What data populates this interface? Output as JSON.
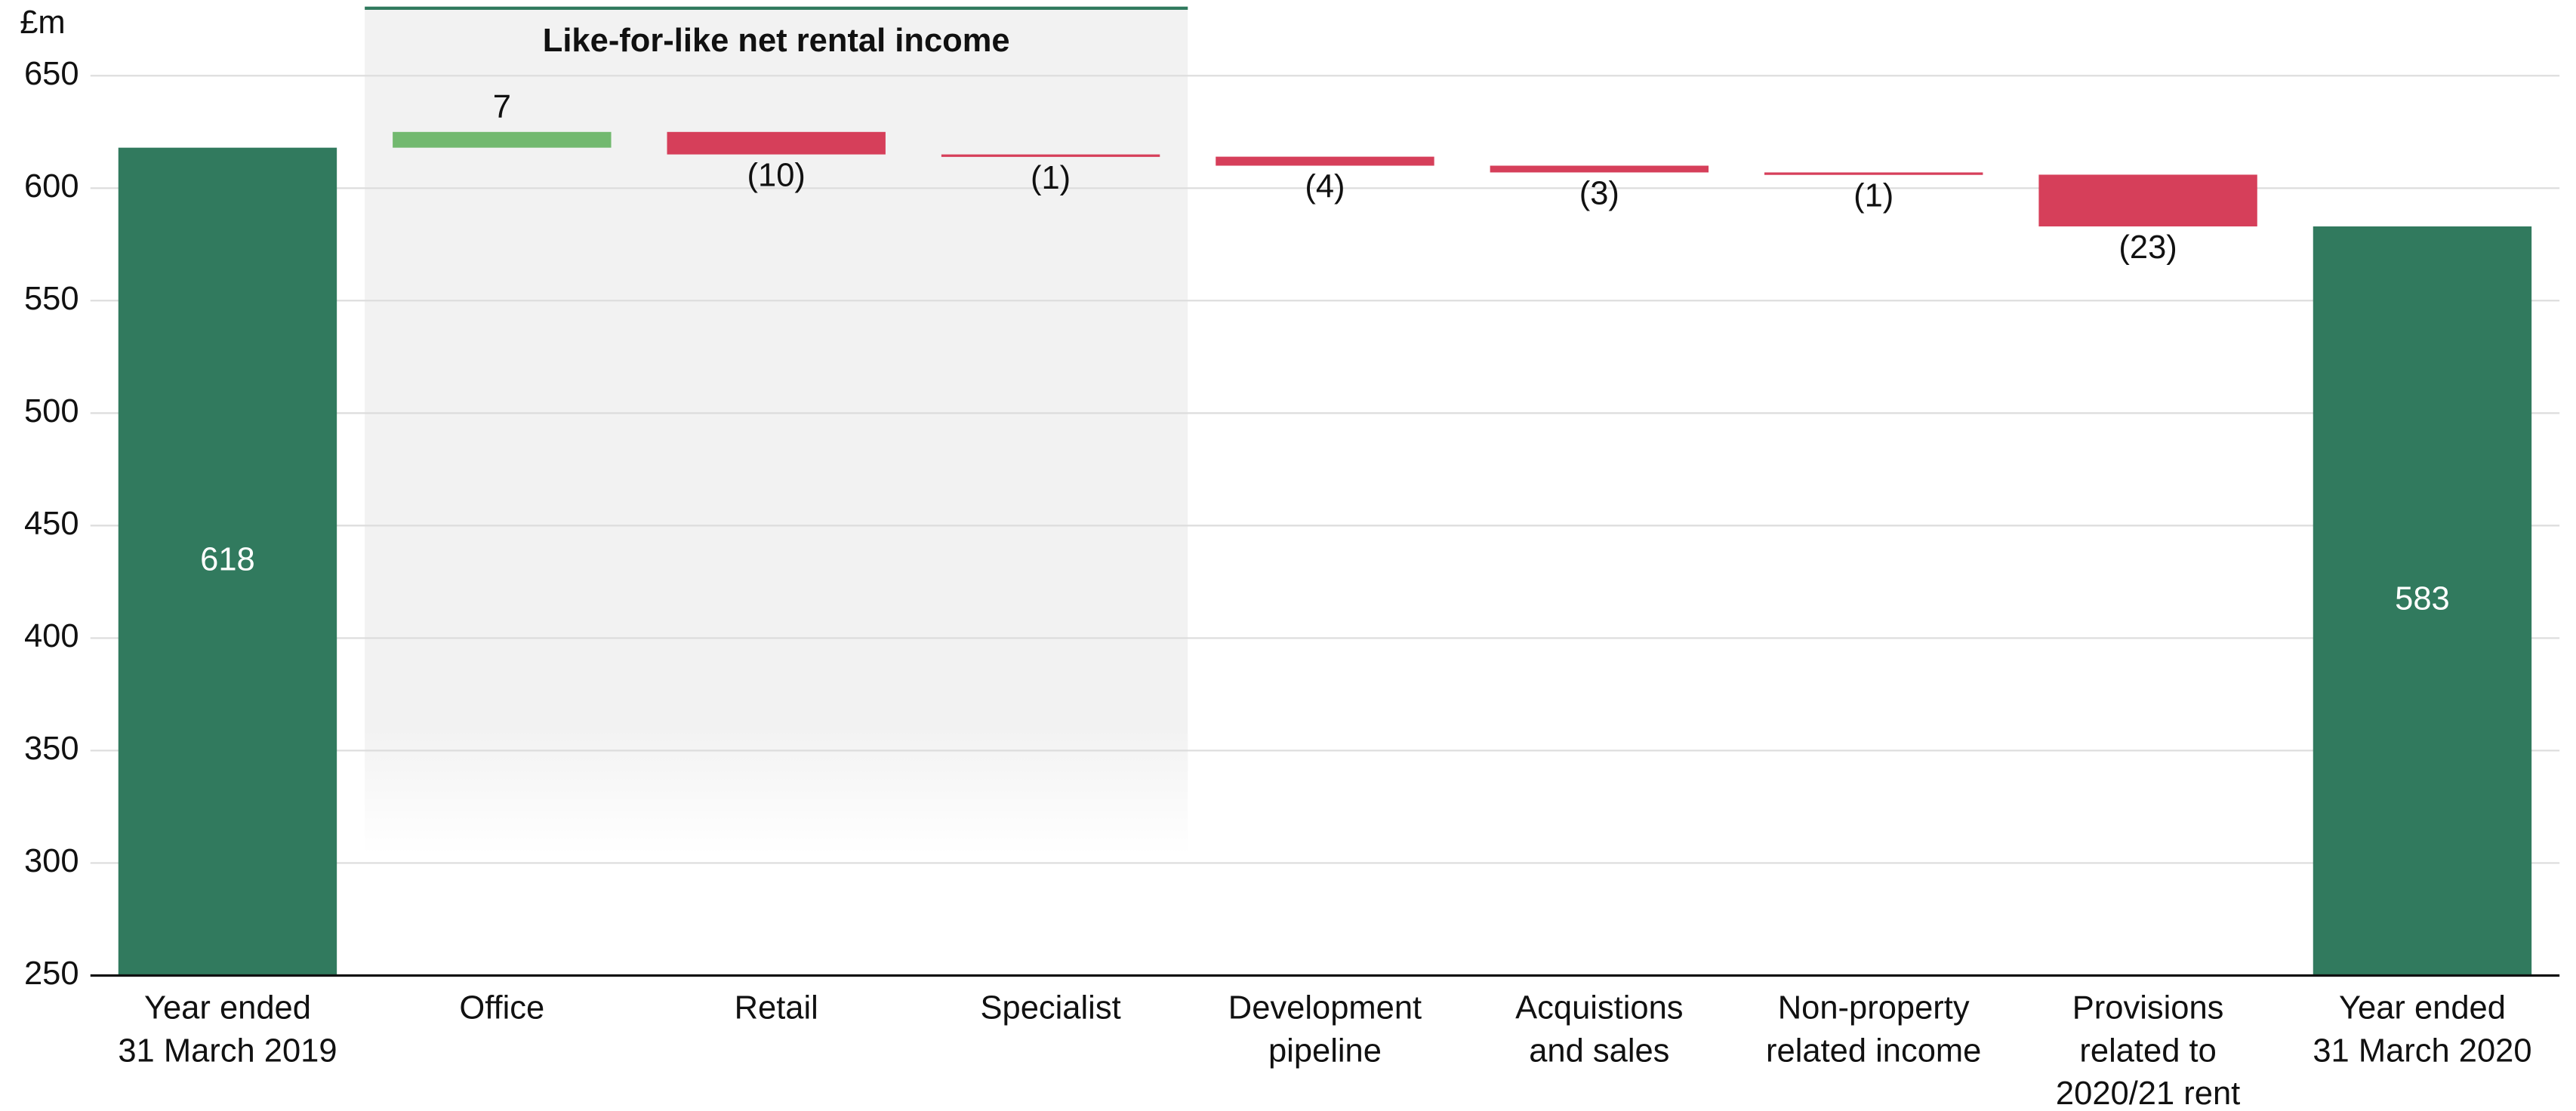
{
  "chart_data": {
    "type": "waterfall",
    "y_axis_label": "£m",
    "annotation": "Like-for-like net rental income",
    "annotation_categories": [
      1,
      3
    ],
    "categories": [
      [
        "Year ended",
        "31 March 2019"
      ],
      [
        "Office"
      ],
      [
        "Retail"
      ],
      [
        "Specialist"
      ],
      [
        "Development",
        "pipeline"
      ],
      [
        "Acquistions",
        "and sales"
      ],
      [
        "Non-property",
        "related income"
      ],
      [
        "Provisions",
        "related to",
        "2020/21 rent"
      ],
      [
        "Year ended",
        "31 March 2020"
      ]
    ],
    "values": [
      618,
      7,
      -10,
      -1,
      -4,
      -3,
      -1,
      -23,
      583
    ],
    "value_labels": [
      "618",
      "7",
      "(10)",
      "(1)",
      "(4)",
      "(3)",
      "(1)",
      "(23)",
      "583"
    ],
    "colors": [
      "#317a5e",
      "#72b96f",
      "#d63f5a",
      "#d63f5a",
      "#d63f5a",
      "#d63f5a",
      "#d63f5a",
      "#d63f5a",
      "#317a5e"
    ],
    "ylim": [
      250,
      680
    ],
    "yticks": [
      250,
      300,
      350,
      400,
      450,
      500,
      550,
      600,
      650
    ],
    "grid": true
  }
}
